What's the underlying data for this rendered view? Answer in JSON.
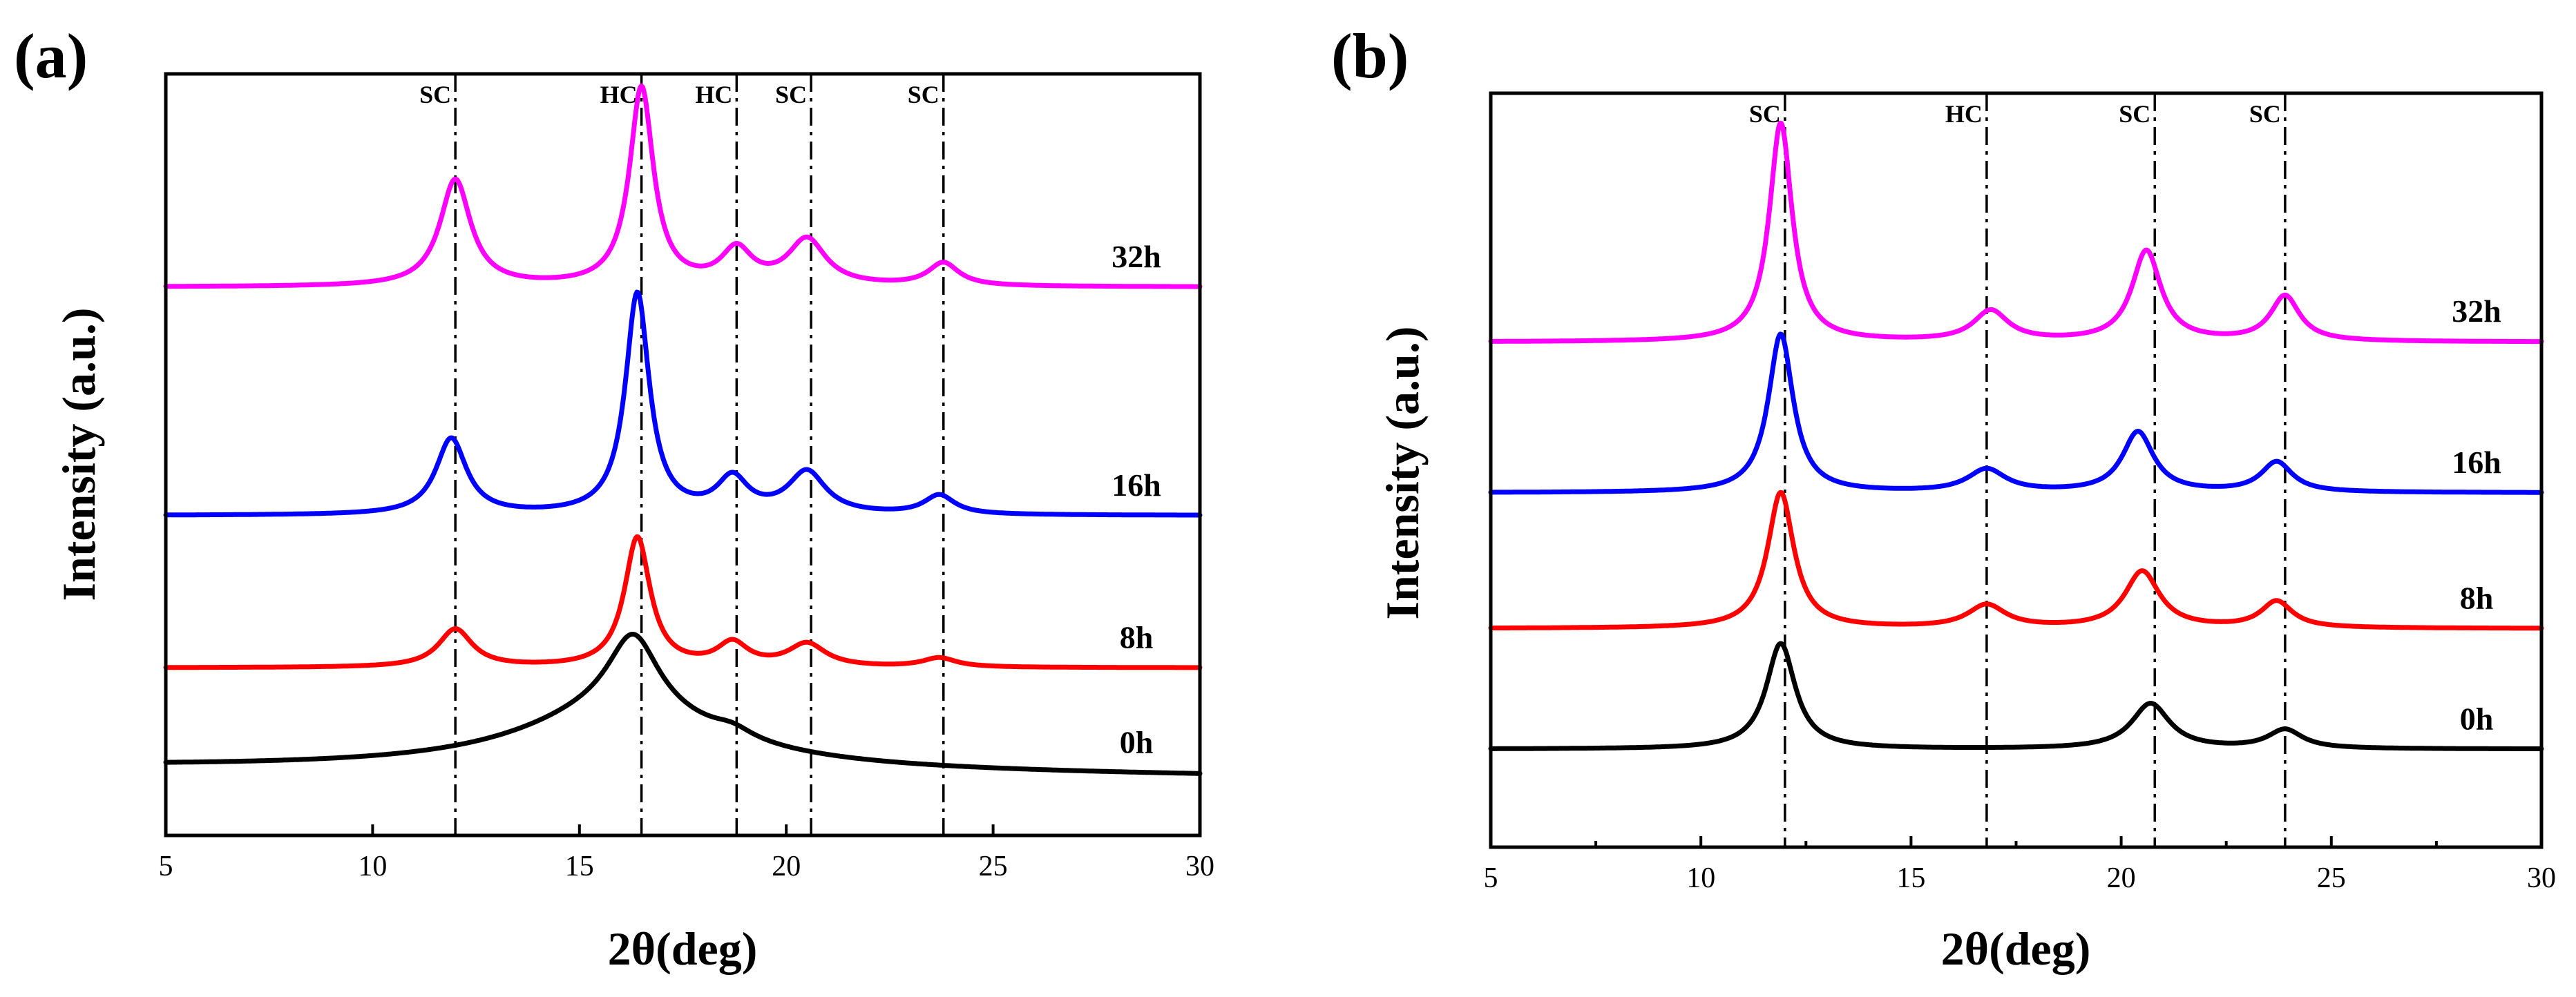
{
  "chart_data": [
    {
      "type": "line",
      "panel_label": "(a)",
      "xlabel": "2θ(deg)",
      "ylabel": "Intensity (a.u.)",
      "xlim": [
        5,
        30
      ],
      "ylim": [
        0,
        100
      ],
      "xticks": [
        5,
        10,
        15,
        20,
        25,
        30
      ],
      "reference_lines": [
        {
          "x": 12.0,
          "label": "SC"
        },
        {
          "x": 16.5,
          "label": "HC"
        },
        {
          "x": 18.8,
          "label": "HC"
        },
        {
          "x": 20.6,
          "label": "SC"
        },
        {
          "x": 23.8,
          "label": "SC"
        }
      ],
      "series": [
        {
          "name": "0h",
          "color": "#000000",
          "baseline": 9,
          "slope": -0.05,
          "peaks": [
            {
              "center": 16.3,
              "height": 10,
              "width": 0.75
            },
            {
              "center": 16.0,
              "height": 8,
              "width": 3.0
            },
            {
              "center": 18.7,
              "height": 1.2,
              "width": 0.6
            }
          ]
        },
        {
          "name": "8h",
          "color": "#ff0000",
          "baseline": 22,
          "slope": 0,
          "peaks": [
            {
              "center": 12.0,
              "height": 5,
              "width": 0.5
            },
            {
              "center": 16.4,
              "height": 17,
              "width": 0.38
            },
            {
              "center": 18.7,
              "height": 3,
              "width": 0.45
            },
            {
              "center": 20.5,
              "height": 3,
              "width": 0.55
            },
            {
              "center": 23.7,
              "height": 1.2,
              "width": 0.5
            }
          ]
        },
        {
          "name": "16h",
          "color": "#0000ff",
          "baseline": 42,
          "slope": 0,
          "peaks": [
            {
              "center": 11.9,
              "height": 10,
              "width": 0.45
            },
            {
              "center": 16.4,
              "height": 29,
              "width": 0.35
            },
            {
              "center": 18.7,
              "height": 4.5,
              "width": 0.45
            },
            {
              "center": 20.5,
              "height": 5.5,
              "width": 0.55
            },
            {
              "center": 23.7,
              "height": 2.5,
              "width": 0.45
            }
          ]
        },
        {
          "name": "32h",
          "color": "#ff00ff",
          "baseline": 72,
          "slope": 0,
          "peaks": [
            {
              "center": 12.0,
              "height": 14,
              "width": 0.45
            },
            {
              "center": 16.5,
              "height": 26,
              "width": 0.35
            },
            {
              "center": 18.8,
              "height": 4.5,
              "width": 0.45
            },
            {
              "center": 20.5,
              "height": 6,
              "width": 0.55
            },
            {
              "center": 23.8,
              "height": 3,
              "width": 0.45
            }
          ]
        }
      ]
    },
    {
      "type": "line",
      "panel_label": "(b)",
      "xlabel": "2θ(deg)",
      "ylabel": "Intensity (a.u.)",
      "xlim": [
        5,
        30
      ],
      "ylim": [
        0,
        100
      ],
      "xticks": [
        5,
        10,
        15,
        20,
        25,
        30
      ],
      "reference_lines": [
        {
          "x": 12.0,
          "label": "SC"
        },
        {
          "x": 16.8,
          "label": "HC"
        },
        {
          "x": 20.8,
          "label": "SC"
        },
        {
          "x": 23.9,
          "label": "SC"
        }
      ],
      "series": [
        {
          "name": "0h",
          "color": "#000000",
          "baseline": 13,
          "slope": 0,
          "peaks": [
            {
              "center": 11.9,
              "height": 14,
              "width": 0.42
            },
            {
              "center": 20.7,
              "height": 6,
              "width": 0.55
            },
            {
              "center": 23.9,
              "height": 2.5,
              "width": 0.5
            }
          ]
        },
        {
          "name": "8h",
          "color": "#ff0000",
          "baseline": 29,
          "slope": 0,
          "peaks": [
            {
              "center": 11.9,
              "height": 18,
              "width": 0.38
            },
            {
              "center": 16.8,
              "height": 3,
              "width": 0.55
            },
            {
              "center": 20.5,
              "height": 7.5,
              "width": 0.5
            },
            {
              "center": 23.7,
              "height": 3.5,
              "width": 0.45
            }
          ]
        },
        {
          "name": "16h",
          "color": "#0000ff",
          "baseline": 47,
          "slope": 0,
          "peaks": [
            {
              "center": 11.9,
              "height": 21,
              "width": 0.36
            },
            {
              "center": 16.8,
              "height": 3,
              "width": 0.55
            },
            {
              "center": 20.4,
              "height": 8,
              "width": 0.45
            },
            {
              "center": 23.7,
              "height": 4,
              "width": 0.45
            }
          ]
        },
        {
          "name": "32h",
          "color": "#ff00ff",
          "baseline": 67,
          "slope": 0,
          "peaks": [
            {
              "center": 11.9,
              "height": 29,
              "width": 0.33
            },
            {
              "center": 16.9,
              "height": 4,
              "width": 0.5
            },
            {
              "center": 20.6,
              "height": 12,
              "width": 0.42
            },
            {
              "center": 23.9,
              "height": 6,
              "width": 0.42
            }
          ]
        }
      ]
    }
  ]
}
